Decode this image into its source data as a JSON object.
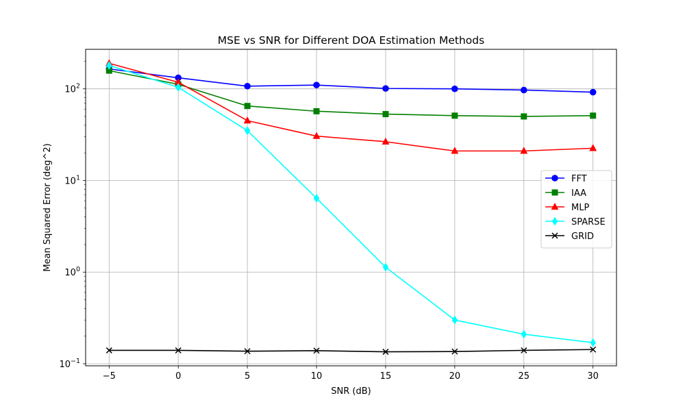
{
  "chart_data": {
    "type": "line",
    "title": "MSE vs SNR for Different DOA Estimation Methods",
    "xlabel": "SNR (dB)",
    "ylabel": "Mean Squared Error (deg^2)",
    "yscale": "log",
    "xlim": [
      -6.7,
      31.7
    ],
    "ylim": [
      0.095,
      270
    ],
    "grid": true,
    "legend_position": "center-right",
    "x": [
      -5,
      0,
      5,
      10,
      15,
      20,
      25,
      30
    ],
    "x_ticks": [
      {
        "value": -5,
        "label": "−5"
      },
      {
        "value": 0,
        "label": "0"
      },
      {
        "value": 5,
        "label": "5"
      },
      {
        "value": 10,
        "label": "10"
      },
      {
        "value": 15,
        "label": "15"
      },
      {
        "value": 20,
        "label": "20"
      },
      {
        "value": 25,
        "label": "25"
      },
      {
        "value": 30,
        "label": "30"
      }
    ],
    "y_ticks": [
      {
        "value": 0.1,
        "base": "10",
        "exp": "−1"
      },
      {
        "value": 1,
        "base": "10",
        "exp": "0"
      },
      {
        "value": 10,
        "base": "10",
        "exp": "1"
      },
      {
        "value": 100,
        "base": "10",
        "exp": "2"
      }
    ],
    "series": [
      {
        "name": "FFT",
        "color": "#0000ff",
        "marker": "circle",
        "values": [
          165,
          132,
          107,
          110,
          101,
          100,
          97,
          92
        ]
      },
      {
        "name": "IAA",
        "color": "#008000",
        "marker": "square",
        "values": [
          158,
          112,
          65,
          57,
          53,
          51,
          50,
          51
        ]
      },
      {
        "name": "MLP",
        "color": "#ff0000",
        "marker": "triangle",
        "values": [
          190,
          118,
          45,
          30.5,
          26.5,
          21,
          21,
          22.5
        ]
      },
      {
        "name": "SPARSE",
        "color": "#00ffff",
        "marker": "diamond",
        "values": [
          180,
          104,
          35,
          6.4,
          1.13,
          0.3,
          0.21,
          0.17
        ]
      },
      {
        "name": "GRID",
        "color": "#000000",
        "marker": "x",
        "values": [
          0.14,
          0.14,
          0.137,
          0.139,
          0.135,
          0.136,
          0.14,
          0.143
        ]
      }
    ]
  }
}
